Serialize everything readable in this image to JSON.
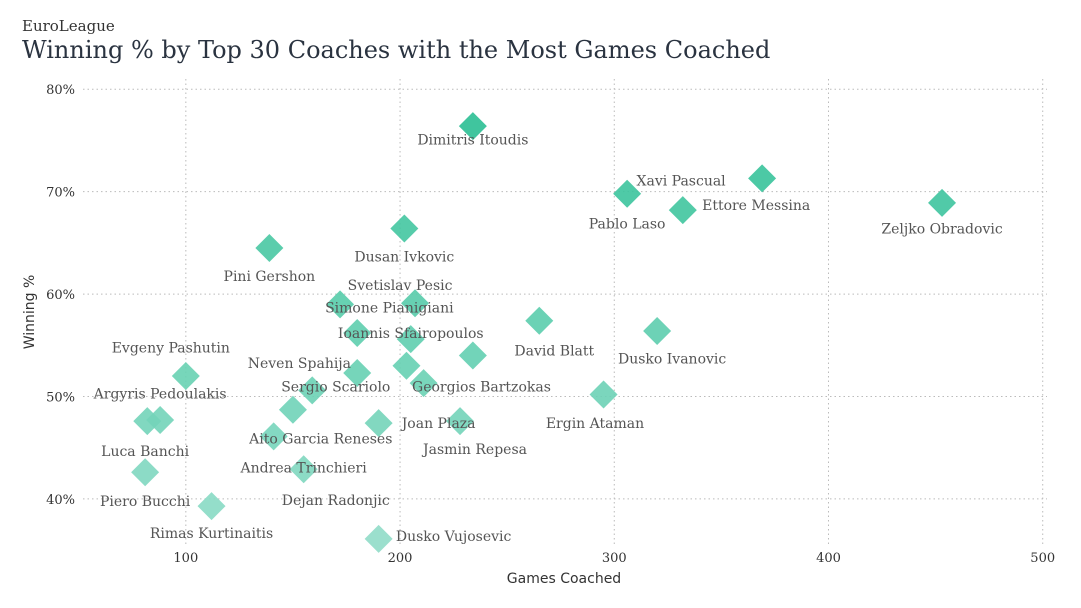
{
  "chart_data": {
    "type": "scatter",
    "kicker": "EuroLeague",
    "title": "Winning % by Top 30 Coaches with the Most Games Coached",
    "xlabel": "Games Coached",
    "ylabel": "Winning %",
    "xlim": [
      52,
      502
    ],
    "ylim": [
      35.5,
      81
    ],
    "x_ticks": [
      100,
      200,
      300,
      400,
      500
    ],
    "y_ticks": [
      40,
      50,
      60,
      70,
      80
    ],
    "y_tick_suffix": "%",
    "grid": true,
    "color_low": "#90dcc8",
    "color_high": "#2bbf94",
    "points": [
      {
        "name": "Dimitris Itoudis",
        "x": 234,
        "y": 76.4
      },
      {
        "name": "Xavi Pascual",
        "x": 369,
        "y": 71.3
      },
      {
        "name": "Pablo Laso",
        "x": 306,
        "y": 69.8
      },
      {
        "name": "Ettore Messina",
        "x": 332,
        "y": 68.2
      },
      {
        "name": "Zeljko Obradovic",
        "x": 453,
        "y": 68.9
      },
      {
        "name": "Dusan Ivkovic",
        "x": 202,
        "y": 66.4
      },
      {
        "name": "Pini Gershon",
        "x": 139,
        "y": 64.5
      },
      {
        "name": "Svetislav Pesic",
        "x": 207,
        "y": 59.1
      },
      {
        "name": "Simone Pianigiani",
        "x": 172,
        "y": 59.0
      },
      {
        "name": "Ioannis Sfairopoulos",
        "x": 205,
        "y": 55.6
      },
      {
        "name": "Ioannis Sfairopoulos",
        "x": 180,
        "y": 56.2
      },
      {
        "name": "David Blatt",
        "x": 265,
        "y": 57.4
      },
      {
        "name": "Dusko Ivanovic",
        "x": 320,
        "y": 56.4
      },
      {
        "name": "Neven Spahija",
        "x": 203,
        "y": 53.0
      },
      {
        "name": "Georgios Bartzokas",
        "x": 234,
        "y": 54.0
      },
      {
        "name": "Sergio Scariolo",
        "x": 180,
        "y": 52.3
      },
      {
        "name": "Georgios Bartzokas",
        "x": 211,
        "y": 51.3
      },
      {
        "name": "Evgeny Pashutin",
        "x": 100,
        "y": 52.0
      },
      {
        "name": "Ergin Ataman",
        "x": 295,
        "y": 50.2
      },
      {
        "name": "Sergio Scariolo",
        "x": 159,
        "y": 50.6
      },
      {
        "name": "Argyris Pedoulakis",
        "x": 88,
        "y": 47.7
      },
      {
        "name": "Luca Banchi",
        "x": 82,
        "y": 47.6
      },
      {
        "name": "Aito Garcia Reneses",
        "x": 150,
        "y": 48.7
      },
      {
        "name": "Joan Plaza",
        "x": 190,
        "y": 47.4
      },
      {
        "name": "Jasmin Repesa",
        "x": 228,
        "y": 47.6
      },
      {
        "name": "Aito Garcia Reneses",
        "x": 141,
        "y": 46.1
      },
      {
        "name": "Andrea Trinchieri",
        "x": 155,
        "y": 42.9
      },
      {
        "name": "Piero Bucchi",
        "x": 81,
        "y": 42.6
      },
      {
        "name": "Rimas Kurtinaitis",
        "x": 112,
        "y": 39.3
      },
      {
        "name": "Dusko Vujosevic",
        "x": 190,
        "y": 36.1
      }
    ],
    "labels": [
      {
        "text": "Dimitris Itoudis",
        "x": 234,
        "y": 74.6,
        "anchor": "middle"
      },
      {
        "text": "Xavi Pascual",
        "x": 352,
        "y": 70.6,
        "anchor": "end"
      },
      {
        "text": "Pablo Laso",
        "x": 306,
        "y": 66.4,
        "anchor": "middle"
      },
      {
        "text": "Ettore Messina",
        "x": 341,
        "y": 68.2,
        "anchor": "start"
      },
      {
        "text": "Zeljko Obradovic",
        "x": 453,
        "y": 65.9,
        "anchor": "middle"
      },
      {
        "text": "Dusan Ivkovic",
        "x": 202,
        "y": 63.2,
        "anchor": "middle"
      },
      {
        "text": "Pini Gershon",
        "x": 139,
        "y": 61.3,
        "anchor": "middle"
      },
      {
        "text": "Svetislav Pesic",
        "x": 200,
        "y": 60.4,
        "anchor": "middle"
      },
      {
        "text": "Simone Pianigiani",
        "x": 195,
        "y": 58.2,
        "anchor": "middle"
      },
      {
        "text": "Ioannis Sfairopoulos",
        "x": 205,
        "y": 55.7,
        "anchor": "middle"
      },
      {
        "text": "David Blatt",
        "x": 272,
        "y": 54.0,
        "anchor": "middle"
      },
      {
        "text": "Dusko Ivanovic",
        "x": 327,
        "y": 53.2,
        "anchor": "middle"
      },
      {
        "text": "Neven Spahija",
        "x": 153,
        "y": 52.8,
        "anchor": "middle"
      },
      {
        "text": "Sergio Scariolo",
        "x": 170,
        "y": 50.5,
        "anchor": "middle"
      },
      {
        "text": "Georgios Bartzokas",
        "x": 238,
        "y": 50.5,
        "anchor": "middle"
      },
      {
        "text": "Evgeny Pashutin",
        "x": 93,
        "y": 54.3,
        "anchor": "middle"
      },
      {
        "text": "Argyris Pedoulakis",
        "x": 88,
        "y": 49.8,
        "anchor": "middle"
      },
      {
        "text": "Ergin Ataman",
        "x": 291,
        "y": 46.9,
        "anchor": "middle"
      },
      {
        "text": "Joan Plaza",
        "x": 218,
        "y": 46.9,
        "anchor": "middle"
      },
      {
        "text": "Aito Garcia Reneses",
        "x": 163,
        "y": 45.4,
        "anchor": "middle"
      },
      {
        "text": "Jasmin Repesa",
        "x": 235,
        "y": 44.4,
        "anchor": "middle"
      },
      {
        "text": "Luca Banchi",
        "x": 81,
        "y": 44.2,
        "anchor": "middle"
      },
      {
        "text": "Andrea Trinchieri",
        "x": 155,
        "y": 42.6,
        "anchor": "middle"
      },
      {
        "text": "Dejan Radonjic",
        "x": 170,
        "y": 39.4,
        "anchor": "middle"
      },
      {
        "text": "Piero Bucchi",
        "x": 81,
        "y": 39.3,
        "anchor": "middle"
      },
      {
        "text": "Rimas Kurtinaitis",
        "x": 112,
        "y": 36.2,
        "anchor": "middle"
      },
      {
        "text": "Dusko Vujosevic",
        "x": 225,
        "y": 35.9,
        "anchor": "middle"
      }
    ]
  }
}
